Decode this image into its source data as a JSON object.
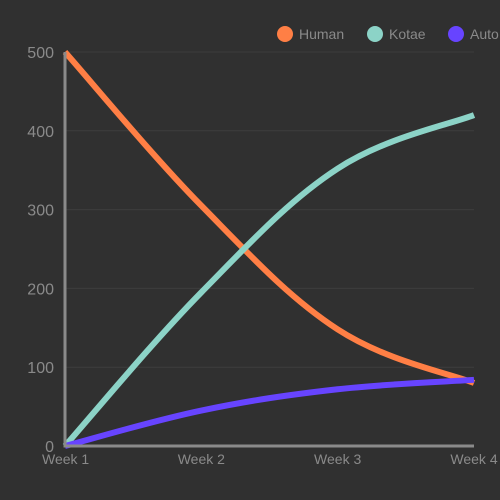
{
  "chart_data": {
    "type": "line",
    "categories": [
      "Week 1",
      "Week 2",
      "Week 3",
      "Week 4"
    ],
    "ylim": [
      0,
      500
    ],
    "yticks": [
      0,
      100,
      200,
      300,
      400,
      500
    ],
    "grid": true,
    "legend_position": "top-right",
    "series": [
      {
        "name": "Human",
        "color": "#ff7f45",
        "values": [
          500,
          305,
          148,
          80
        ]
      },
      {
        "name": "Kotae",
        "color": "#8cd3c7",
        "values": [
          0,
          195,
          352,
          420
        ]
      },
      {
        "name": "Auto",
        "color": "#6744ff",
        "values": [
          0,
          45,
          72,
          84
        ]
      }
    ]
  }
}
